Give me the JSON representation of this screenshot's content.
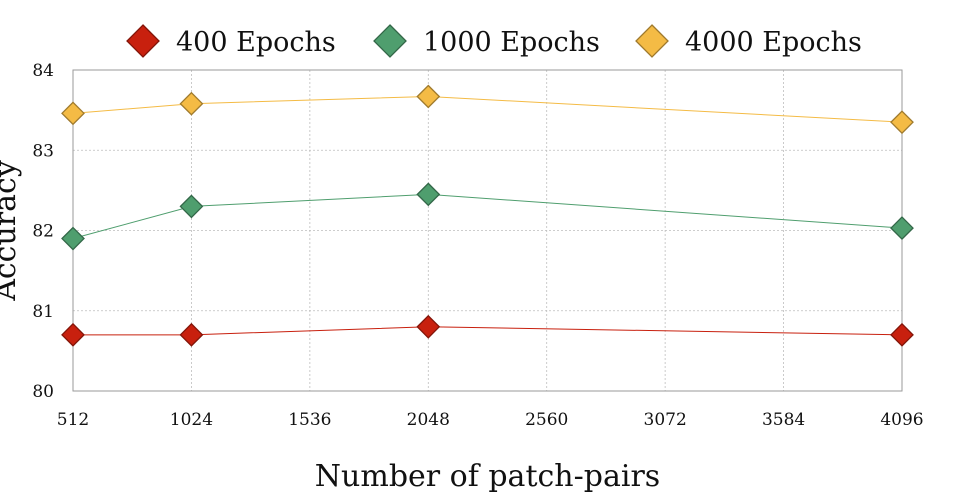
{
  "chart_data": {
    "type": "line",
    "title": "",
    "xlabel": "Number of patch-pairs",
    "ylabel": "Accuracy",
    "x": [
      512,
      1024,
      2048,
      4096
    ],
    "x_ticks": [
      "512",
      "1024",
      "1536",
      "2048",
      "2560",
      "3072",
      "3584",
      "4096"
    ],
    "x_tick_values": [
      512,
      1024,
      1536,
      2048,
      2560,
      3072,
      3584,
      4096
    ],
    "y_ticks": [
      "80",
      "81",
      "82",
      "83",
      "84"
    ],
    "y_tick_values": [
      80,
      81,
      82,
      83,
      84
    ],
    "xlim": [
      512,
      4096
    ],
    "ylim": [
      80,
      84
    ],
    "grid": true,
    "legend_position": "top",
    "series": [
      {
        "name": "400 Epochs",
        "color": "#c8200e",
        "values": [
          80.7,
          80.7,
          80.8,
          80.7
        ]
      },
      {
        "name": "1000 Epochs",
        "color": "#4f9e6e",
        "values": [
          81.9,
          82.3,
          82.45,
          82.03
        ]
      },
      {
        "name": "4000 Epochs",
        "color": "#f4bb45",
        "values": [
          83.46,
          83.58,
          83.67,
          83.35
        ]
      }
    ]
  }
}
